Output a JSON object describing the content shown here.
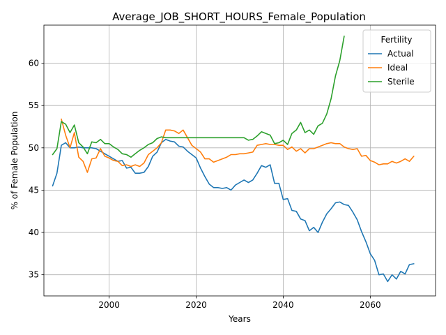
{
  "chart_data": {
    "type": "line",
    "title": "Average_JOB_SHORT_HOURS_Female_Population",
    "xlabel": "Years",
    "ylabel": "% of Female Population",
    "xlim": [
      1985,
      2075
    ],
    "ylim": [
      32.5,
      64.5
    ],
    "xticks": [
      2000,
      2020,
      2040,
      2060
    ],
    "yticks": [
      35,
      40,
      45,
      50,
      55,
      60
    ],
    "grid": true,
    "legend": {
      "title": "Fertility",
      "position": "top-right"
    },
    "series": [
      {
        "name": "Actual",
        "color": "#1f77b4",
        "x": [
          1987,
          1988,
          1989,
          1990,
          1991,
          1992,
          1993,
          1994,
          1995,
          1996,
          1997,
          1998,
          1999,
          2000,
          2001,
          2002,
          2003,
          2004,
          2005,
          2006,
          2007,
          2008,
          2009,
          2010,
          2011,
          2012,
          2013,
          2014,
          2015,
          2016,
          2017,
          2018,
          2019,
          2020,
          2021,
          2022,
          2023,
          2024,
          2025,
          2026,
          2027,
          2028,
          2029,
          2030,
          2031,
          2032,
          2033,
          2034,
          2035,
          2036,
          2037,
          2038,
          2039,
          2040,
          2041,
          2042,
          2043,
          2044,
          2045,
          2046,
          2047,
          2048,
          2049,
          2050,
          2051,
          2052,
          2053,
          2054,
          2055,
          2056,
          2057,
          2058,
          2059,
          2060,
          2061,
          2062,
          2063,
          2064,
          2065,
          2066,
          2067,
          2068,
          2069,
          2070
        ],
        "values": [
          45.5,
          47.0,
          50.3,
          50.6,
          50.0,
          50.0,
          50.1,
          50.0,
          50.0,
          50.0,
          49.9,
          49.6,
          49.3,
          49.0,
          48.7,
          48.4,
          48.5,
          47.6,
          47.7,
          47.0,
          47.0,
          47.1,
          47.8,
          49.0,
          49.5,
          50.6,
          51.0,
          50.8,
          50.7,
          50.2,
          50.1,
          49.6,
          49.2,
          48.8,
          47.6,
          46.6,
          45.7,
          45.3,
          45.3,
          45.2,
          45.3,
          45.0,
          45.6,
          45.9,
          46.2,
          45.9,
          46.2,
          47.0,
          47.9,
          47.7,
          48.0,
          45.8,
          45.8,
          43.9,
          44.0,
          42.6,
          42.5,
          41.6,
          41.4,
          40.2,
          40.6,
          40.0,
          41.2,
          42.2,
          42.8,
          43.5,
          43.6,
          43.3,
          43.2,
          42.4,
          41.5,
          40.1,
          38.9,
          37.5,
          36.7,
          35.0,
          35.1,
          34.2,
          35.0,
          34.5,
          35.4,
          35.1,
          36.2,
          36.3
        ]
      },
      {
        "name": "Ideal",
        "color": "#ff7f0e",
        "x": [
          1989,
          1990,
          1991,
          1992,
          1993,
          1994,
          1995,
          1996,
          1997,
          1998,
          1999,
          2000,
          2001,
          2002,
          2003,
          2004,
          2005,
          2006,
          2007,
          2008,
          2009,
          2010,
          2011,
          2012,
          2013,
          2014,
          2015,
          2016,
          2017,
          2018,
          2019,
          2020,
          2021,
          2022,
          2023,
          2024,
          2025,
          2026,
          2027,
          2028,
          2029,
          2030,
          2031,
          2032,
          2033,
          2034,
          2035,
          2036,
          2037,
          2038,
          2039,
          2040,
          2041,
          2042,
          2043,
          2044,
          2045,
          2046,
          2047,
          2048,
          2049,
          2050,
          2051,
          2052,
          2053,
          2054,
          2055,
          2056,
          2057,
          2058,
          2059,
          2060,
          2061,
          2062,
          2063,
          2064,
          2065,
          2066,
          2067,
          2068,
          2069,
          2070
        ],
        "values": [
          53.4,
          51.5,
          50.0,
          51.8,
          48.9,
          48.4,
          47.1,
          48.7,
          48.8,
          49.9,
          49.0,
          48.8,
          48.5,
          48.4,
          47.9,
          48.0,
          47.8,
          48.0,
          47.8,
          48.2,
          49.2,
          49.6,
          50.0,
          50.6,
          52.1,
          52.1,
          52.0,
          51.7,
          52.1,
          51.2,
          50.3,
          49.9,
          49.5,
          48.7,
          48.7,
          48.3,
          48.5,
          48.7,
          48.9,
          49.2,
          49.2,
          49.3,
          49.3,
          49.4,
          49.5,
          50.3,
          50.4,
          50.5,
          50.4,
          50.4,
          50.3,
          50.3,
          49.8,
          50.1,
          49.6,
          49.9,
          49.4,
          49.9,
          49.9,
          50.1,
          50.3,
          50.5,
          50.6,
          50.5,
          50.5,
          50.1,
          49.9,
          49.8,
          49.9,
          49.0,
          49.1,
          48.5,
          48.3,
          48.0,
          48.1,
          48.1,
          48.4,
          48.2,
          48.4,
          48.7,
          48.4,
          49.0
        ]
      },
      {
        "name": "Sterile",
        "color": "#2ca02c",
        "x": [
          1987,
          1988,
          1989,
          1990,
          1991,
          1992,
          1993,
          1994,
          1995,
          1996,
          1997,
          1998,
          1999,
          2000,
          2001,
          2002,
          2003,
          2004,
          2005,
          2006,
          2007,
          2008,
          2009,
          2010,
          2011,
          2012,
          2013,
          2014,
          2015,
          2016,
          2017,
          2018,
          2019,
          2020,
          2021,
          2022,
          2023,
          2024,
          2025,
          2026,
          2027,
          2028,
          2029,
          2030,
          2031,
          2032,
          2033,
          2034,
          2035,
          2036,
          2037,
          2038,
          2039,
          2040,
          2041,
          2042,
          2043,
          2044,
          2045,
          2046,
          2047,
          2048,
          2049,
          2050,
          2051,
          2052,
          2053,
          2054
        ],
        "values": [
          49.2,
          49.9,
          53.1,
          52.8,
          51.8,
          52.7,
          50.6,
          50.1,
          49.3,
          50.7,
          50.6,
          51.0,
          50.5,
          50.5,
          50.1,
          49.8,
          49.3,
          49.2,
          48.9,
          49.3,
          49.7,
          50.0,
          50.4,
          50.6,
          51.1,
          51.3,
          51.2,
          51.2,
          51.2,
          51.2,
          51.2,
          51.2,
          51.2,
          51.2,
          51.2,
          51.2,
          51.2,
          51.2,
          51.2,
          51.2,
          51.2,
          51.2,
          51.2,
          51.2,
          51.2,
          50.9,
          51.0,
          51.4,
          51.9,
          51.7,
          51.5,
          50.5,
          50.6,
          50.9,
          50.4,
          51.7,
          52.1,
          53.0,
          51.8,
          52.1,
          51.6,
          52.6,
          52.9,
          54.0,
          55.8,
          58.5,
          60.3,
          63.2
        ]
      }
    ]
  }
}
